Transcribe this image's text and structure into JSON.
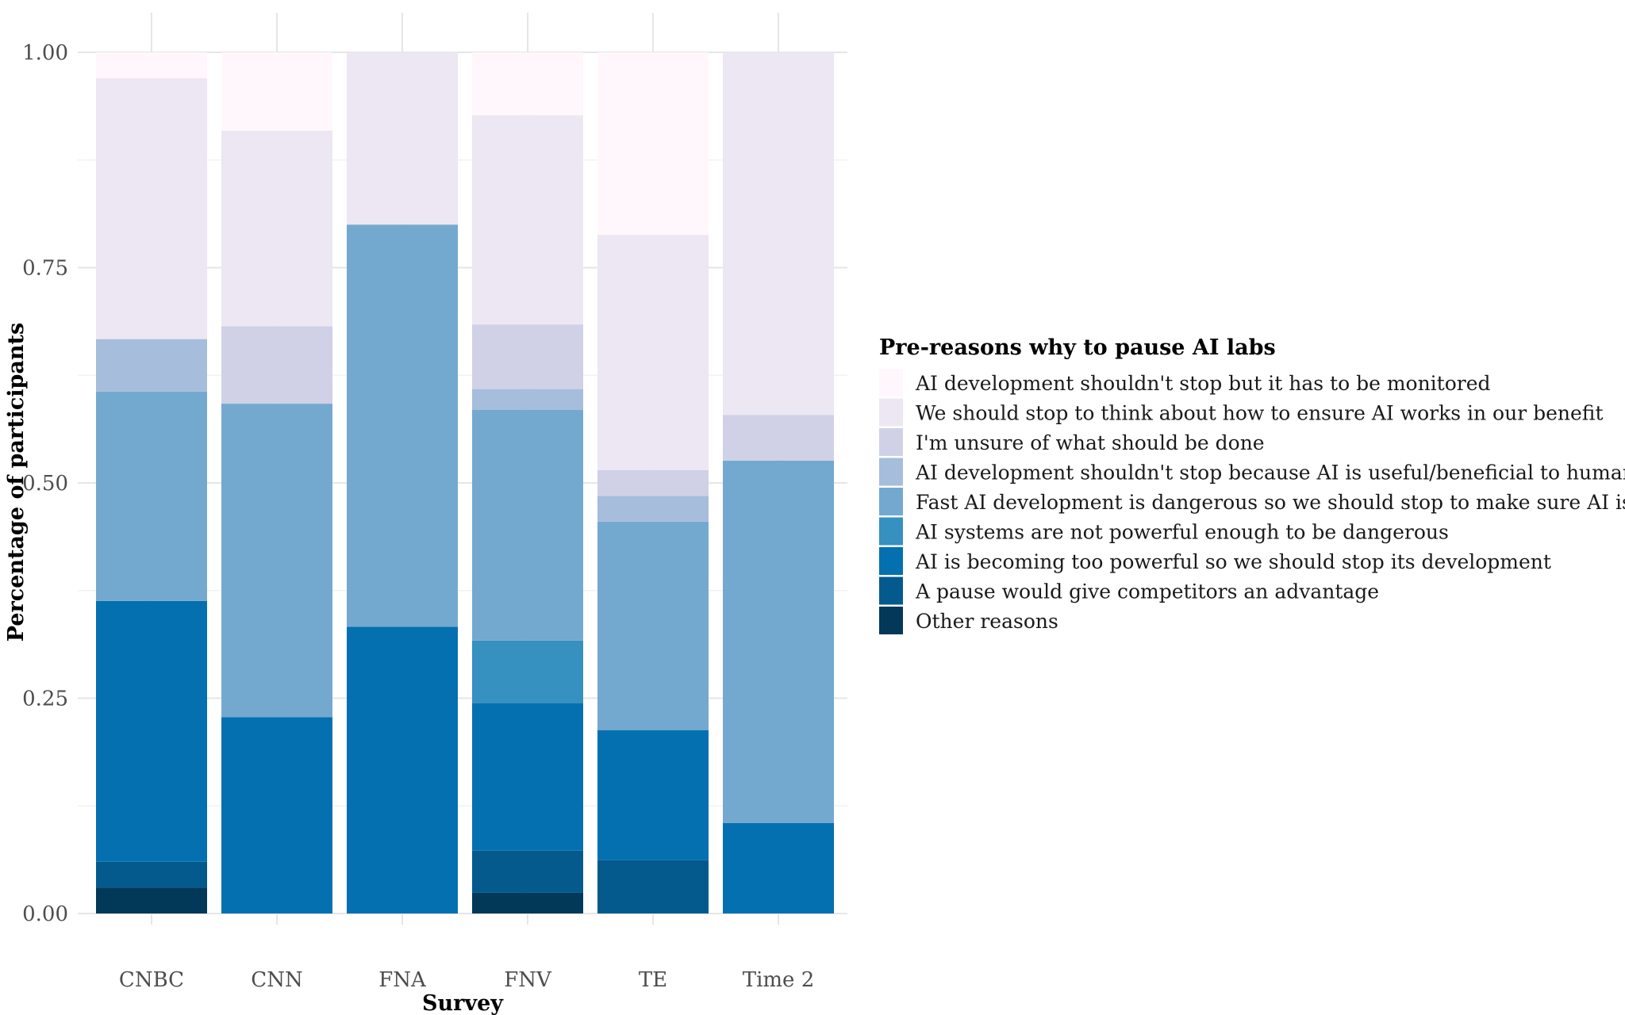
{
  "chart_data": {
    "type": "bar",
    "stacked": true,
    "title": "",
    "xlabel": "Survey",
    "ylabel": "Percentage of participants",
    "ylim": [
      0,
      1
    ],
    "y_ticks": [
      "0.00",
      "0.25",
      "0.50",
      "0.75",
      "1.00"
    ],
    "grid": true,
    "legend_position": "right",
    "legend_title": "Pre-reasons why to pause AI labs",
    "categories": [
      "CNBC",
      "CNN",
      "FNA",
      "FNV",
      "TE",
      "Time 2"
    ],
    "series": [
      {
        "name": "Other reasons",
        "color": "#023858",
        "values": [
          0.03,
          0,
          0,
          0.024,
          0,
          0
        ]
      },
      {
        "name": "A pause would give competitors an advantage",
        "color": "#045a8d",
        "values": [
          0.03,
          0,
          0,
          0.049,
          0.062,
          0
        ]
      },
      {
        "name": "AI is becoming too powerful so we should stop its development",
        "color": "#0570b0",
        "values": [
          0.303,
          0.228,
          0.333,
          0.171,
          0.151,
          0.105
        ]
      },
      {
        "name": "AI systems are not powerful enough to be dangerous",
        "color": "#3690c0",
        "values": [
          0,
          0,
          0,
          0.073,
          0,
          0
        ]
      },
      {
        "name": "Fast AI development is dangerous so we should stop to make sure AI is safe",
        "color": "#74a9cf",
        "values": [
          0.243,
          0.364,
          0.467,
          0.268,
          0.242,
          0.421
        ]
      },
      {
        "name": "AI development shouldn't stop because AI is useful/beneficial to humanity",
        "color": "#a6bddb",
        "values": [
          0.061,
          0,
          0,
          0.024,
          0.03,
          0
        ]
      },
      {
        "name": "I'm unsure of what should be done",
        "color": "#d0d1e6",
        "values": [
          0,
          0.09,
          0,
          0.075,
          0.03,
          0.053
        ]
      },
      {
        "name": "We should stop to think about how to ensure AI works in our benefit",
        "color": "#ece7f2",
        "values": [
          0.303,
          0.227,
          0.2,
          0.243,
          0.273,
          0.421
        ]
      },
      {
        "name": "AI development shouldn't stop but it has to be monitored",
        "color": "#fff7fb",
        "values": [
          0.03,
          0.091,
          0,
          0.073,
          0.212,
          0
        ]
      }
    ]
  }
}
